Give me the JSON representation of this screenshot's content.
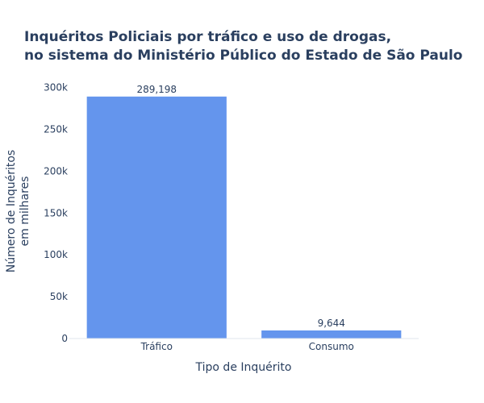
{
  "chart_data": {
    "type": "bar",
    "title_lines": [
      "Inquéritos Policiais por tráfico e uso de drogas,",
      "no sistema do Ministério Público do Estado de São Paulo"
    ],
    "xlabel": "Tipo de Inquérito",
    "ylabel_lines": [
      "Número de Inquéritos",
      "em milhares"
    ],
    "categories": [
      "Tráfico",
      "Consumo"
    ],
    "values": [
      289198,
      9644
    ],
    "value_labels": [
      "289,198",
      "9,644"
    ],
    "ylim": [
      0,
      304419
    ],
    "yticks": [
      0,
      50000,
      100000,
      150000,
      200000,
      250000,
      300000
    ],
    "ytick_labels": [
      "0",
      "50k",
      "100k",
      "150k",
      "200k",
      "250k",
      "300k"
    ],
    "bar_color": "#6495ed",
    "grid": false,
    "legend": "none"
  }
}
